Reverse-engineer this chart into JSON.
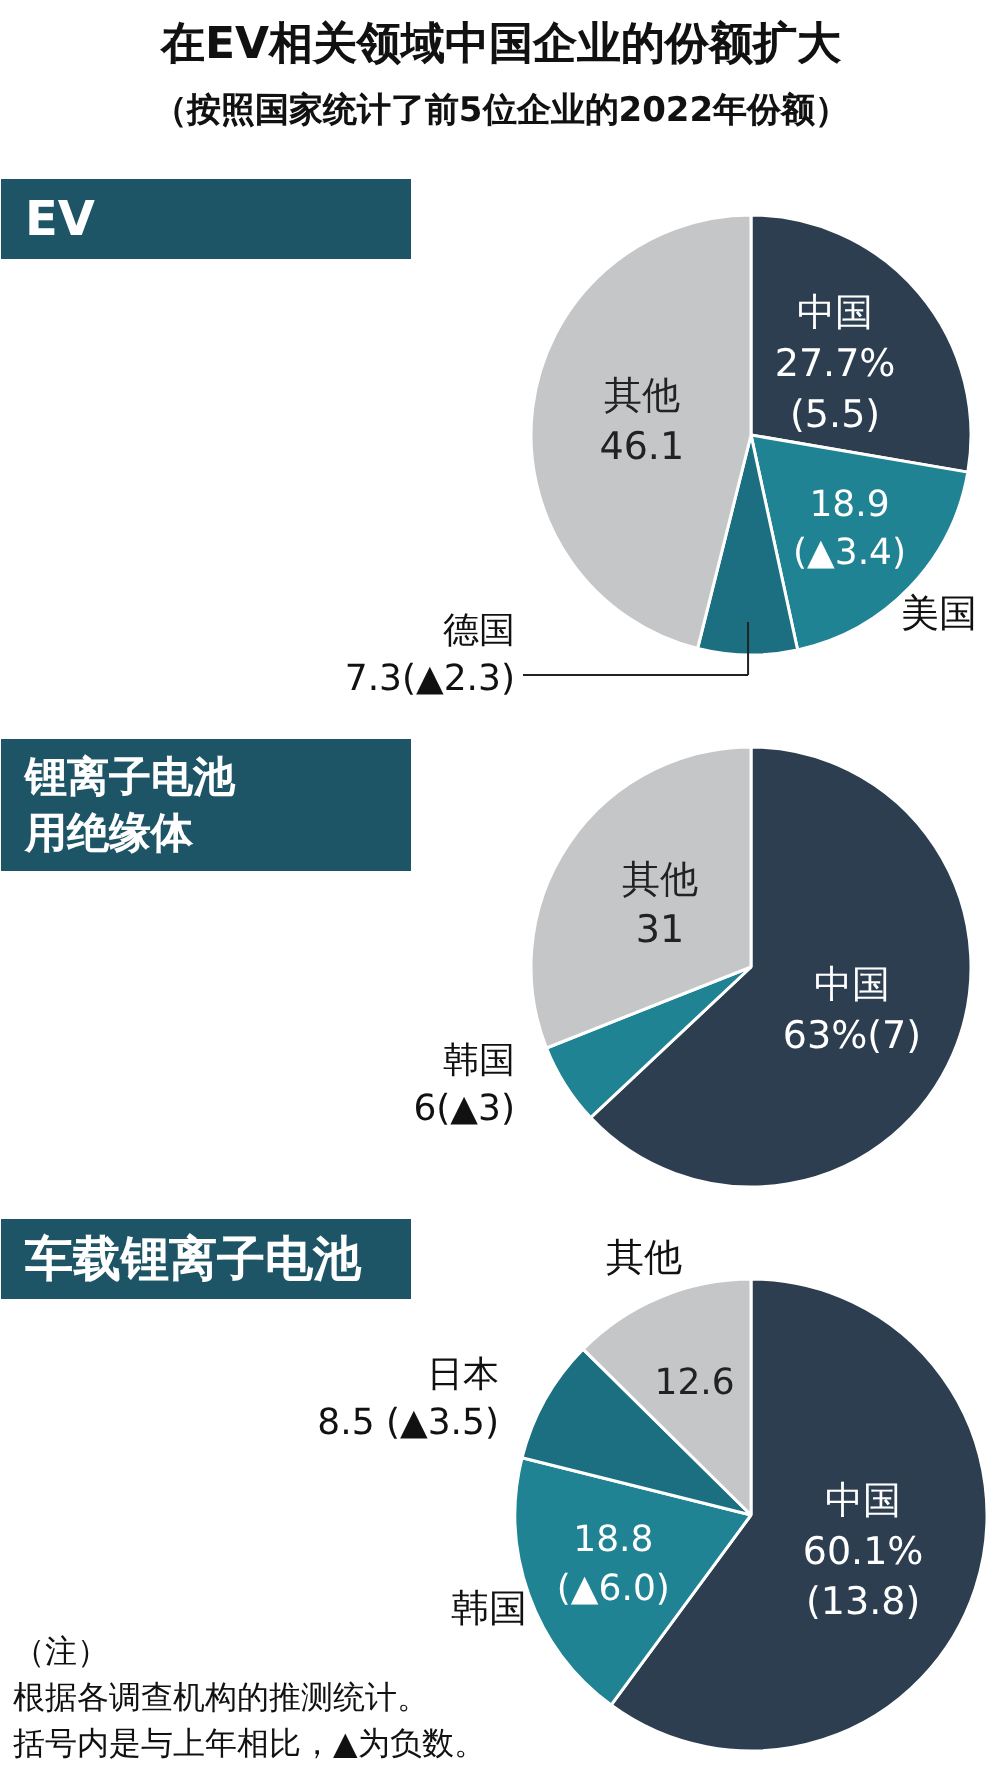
{
  "chart_data": [
    {
      "type": "other",
      "title": "在EV相关领域中国企业的份额扩大",
      "subtitle": "（按照国家统计了前5位企业的2022年份额）"
    },
    {
      "type": "pie",
      "title": "EV",
      "categories": [
        "中国",
        "美国",
        "德国",
        "其他"
      ],
      "values": [
        27.7,
        18.9,
        7.3,
        46.1
      ],
      "colors": [
        "#2c3e50",
        "#1f8394",
        "#1b6f80",
        "#c4c6c8"
      ],
      "value_labels": [
        "27.7%\n(5.5)",
        "18.9\n(▲3.4)",
        "7.3(▲2.3)",
        "46.1"
      ]
    },
    {
      "type": "pie",
      "title": "锂离子电池用绝缘体",
      "categories": [
        "中国",
        "韩国",
        "其他"
      ],
      "values": [
        63,
        6,
        31
      ],
      "colors": [
        "#2c3e50",
        "#1f8394",
        "#c4c6c8"
      ],
      "value_labels": [
        "63%(7)",
        "6(▲3)",
        "31"
      ]
    },
    {
      "type": "pie",
      "title": "车载锂离子电池",
      "categories": [
        "中国",
        "韩国",
        "日本",
        "其他"
      ],
      "values": [
        60.1,
        18.8,
        8.5,
        12.6
      ],
      "colors": [
        "#2c3e50",
        "#1f8394",
        "#1b6f80",
        "#c4c6c8"
      ],
      "value_labels": [
        "60.1%\n(13.8)",
        "18.8\n(▲6.0)",
        "8.5 (▲3.5)",
        "12.6"
      ],
      "annotations": [
        "（注）",
        "根据各调查机构的推测统计。",
        "括号内是与上年相比，▲为负数。"
      ]
    }
  ]
}
